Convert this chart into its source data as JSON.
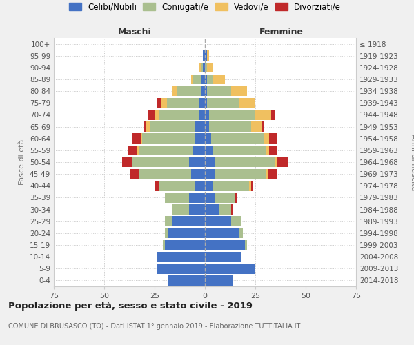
{
  "age_groups": [
    "0-4",
    "5-9",
    "10-14",
    "15-19",
    "20-24",
    "25-29",
    "30-34",
    "35-39",
    "40-44",
    "45-49",
    "50-54",
    "55-59",
    "60-64",
    "65-69",
    "70-74",
    "75-79",
    "80-84",
    "85-89",
    "90-94",
    "95-99",
    "100+"
  ],
  "birth_years": [
    "2014-2018",
    "2009-2013",
    "2004-2008",
    "1999-2003",
    "1994-1998",
    "1989-1993",
    "1984-1988",
    "1979-1983",
    "1974-1978",
    "1969-1973",
    "1964-1968",
    "1959-1963",
    "1954-1958",
    "1949-1953",
    "1944-1948",
    "1939-1943",
    "1934-1938",
    "1929-1933",
    "1924-1928",
    "1919-1923",
    "≤ 1918"
  ],
  "colors": {
    "celibe": "#4472C4",
    "coniugato": "#AABF8F",
    "vedovo": "#F0C060",
    "divorziato": "#C0292A"
  },
  "maschi": {
    "celibe": [
      18,
      24,
      24,
      20,
      18,
      16,
      8,
      8,
      5,
      7,
      8,
      6,
      5,
      5,
      3,
      3,
      2,
      2,
      1,
      1,
      0
    ],
    "coniugato": [
      0,
      0,
      0,
      1,
      2,
      4,
      8,
      12,
      18,
      26,
      28,
      27,
      26,
      22,
      20,
      16,
      12,
      4,
      1,
      0,
      0
    ],
    "vedovo": [
      0,
      0,
      0,
      0,
      0,
      0,
      0,
      0,
      0,
      0,
      0,
      1,
      1,
      2,
      2,
      3,
      2,
      1,
      1,
      0,
      0
    ],
    "divorziato": [
      0,
      0,
      0,
      0,
      0,
      0,
      0,
      0,
      2,
      4,
      5,
      4,
      4,
      1,
      3,
      2,
      0,
      0,
      0,
      0,
      0
    ]
  },
  "femmine": {
    "celibe": [
      14,
      25,
      18,
      20,
      17,
      13,
      7,
      5,
      4,
      5,
      5,
      4,
      3,
      2,
      2,
      1,
      1,
      1,
      0,
      1,
      0
    ],
    "coniugato": [
      0,
      0,
      0,
      1,
      2,
      5,
      6,
      10,
      18,
      25,
      30,
      26,
      26,
      21,
      23,
      16,
      12,
      3,
      1,
      0,
      0
    ],
    "vedovo": [
      0,
      0,
      0,
      0,
      0,
      0,
      0,
      0,
      1,
      1,
      1,
      2,
      3,
      5,
      8,
      8,
      8,
      6,
      3,
      1,
      0
    ],
    "divorziato": [
      0,
      0,
      0,
      0,
      0,
      0,
      1,
      1,
      1,
      5,
      5,
      4,
      4,
      1,
      2,
      0,
      0,
      0,
      0,
      0,
      0
    ]
  },
  "xlim": 75,
  "title": "Popolazione per età, sesso e stato civile - 2019",
  "subtitle": "COMUNE DI BRUSASCO (TO) - Dati ISTAT 1° gennaio 2019 - Elaborazione TUTTITALIA.IT",
  "xlabel_left": "Maschi",
  "xlabel_right": "Femmine",
  "ylabel": "Fasce di età",
  "ylabel_right": "Anni di nascita",
  "legend_labels": [
    "Celibi/Nubili",
    "Coniugati/e",
    "Vedovi/e",
    "Divorziati/e"
  ],
  "bg_color": "#F0F0F0",
  "plot_bg": "#FFFFFF"
}
